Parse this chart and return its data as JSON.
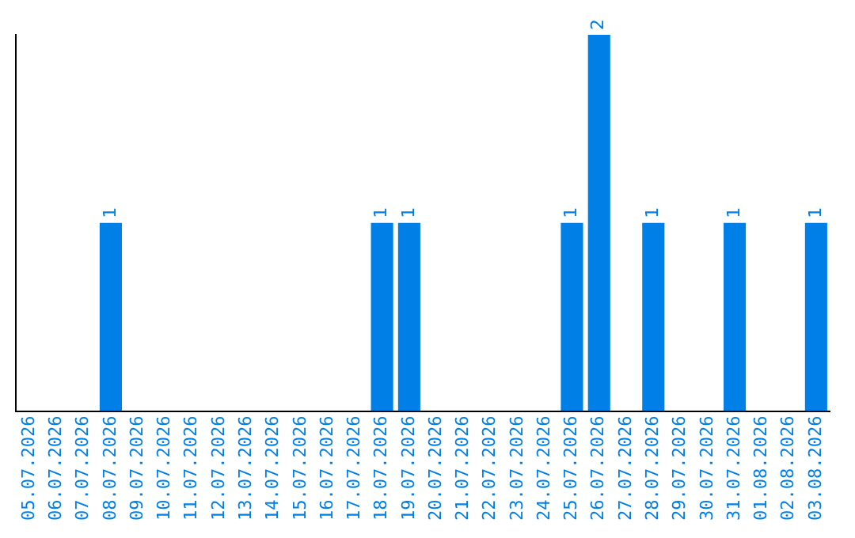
{
  "chart_data": {
    "type": "bar",
    "categories": [
      "05.07.2026",
      "06.07.2026",
      "07.07.2026",
      "08.07.2026",
      "09.07.2026",
      "10.07.2026",
      "11.07.2026",
      "12.07.2026",
      "13.07.2026",
      "14.07.2026",
      "15.07.2026",
      "16.07.2026",
      "17.07.2026",
      "18.07.2026",
      "19.07.2026",
      "20.07.2026",
      "21.07.2026",
      "22.07.2026",
      "23.07.2026",
      "24.07.2026",
      "25.07.2026",
      "26.07.2026",
      "27.07.2026",
      "28.07.2026",
      "29.07.2026",
      "30.07.2026",
      "31.07.2026",
      "01.08.2026",
      "02.08.2026",
      "03.08.2026"
    ],
    "values": [
      0,
      0,
      0,
      1,
      0,
      0,
      0,
      0,
      0,
      0,
      0,
      0,
      0,
      1,
      1,
      0,
      0,
      0,
      0,
      0,
      1,
      2,
      0,
      1,
      0,
      0,
      1,
      0,
      0,
      1
    ],
    "value_labels": [
      null,
      null,
      null,
      "1",
      null,
      null,
      null,
      null,
      null,
      null,
      null,
      null,
      null,
      "1",
      "1",
      null,
      null,
      null,
      null,
      null,
      "1",
      "2",
      null,
      "1",
      null,
      null,
      "1",
      null,
      null,
      "1"
    ],
    "color": "#0080e6",
    "ylim": [
      0,
      2
    ],
    "tick_labels": "x",
    "grid": false,
    "legend": false
  }
}
